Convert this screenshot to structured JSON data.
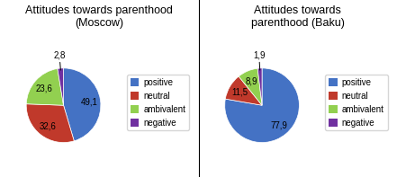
{
  "chart_data": [
    {
      "type": "pie",
      "title": "Attitudes towards parenthood\n(Moscow)",
      "categories": [
        "positive",
        "neutral",
        "ambivalent",
        "negative"
      ],
      "values": [
        49.1,
        32.6,
        23.6,
        2.8
      ],
      "value_labels": [
        "49,1",
        "32,6",
        "23,6",
        "2,8"
      ],
      "colors": [
        "#4472C4",
        "#C0392B",
        "#92D050",
        "#7030A0"
      ],
      "data_labels": true,
      "legend": "center left"
    },
    {
      "type": "pie",
      "title": "Attitudes towards\nparenthood (Baku)",
      "categories": [
        "positive",
        "neutral",
        "ambivalent",
        "negative"
      ],
      "values": [
        77.9,
        11.5,
        8.9,
        1.9
      ],
      "value_labels": [
        "77,9",
        "11,5",
        "8,9",
        "1,9"
      ],
      "colors": [
        "#4472C4",
        "#C0392B",
        "#92D050",
        "#7030A0"
      ],
      "data_labels": true,
      "legend": "center left"
    }
  ]
}
